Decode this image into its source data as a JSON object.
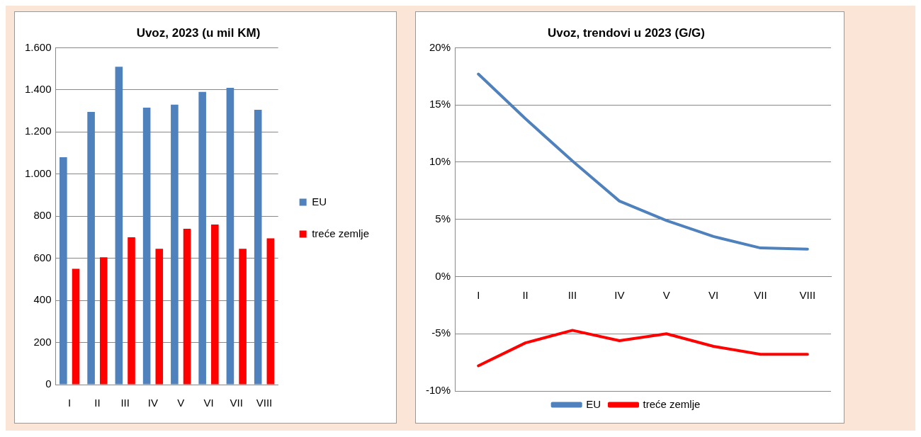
{
  "chart_data": [
    {
      "type": "bar",
      "title": "Uvoz, 2023 (u mil KM)",
      "categories": [
        "I",
        "II",
        "III",
        "IV",
        "V",
        "VI",
        "VII",
        "VIII"
      ],
      "series": [
        {
          "name": "EU",
          "color": "#4f81bd",
          "values": [
            1080,
            1295,
            1510,
            1315,
            1330,
            1390,
            1410,
            1305
          ]
        },
        {
          "name": "treće zemlje",
          "color": "#ff0000",
          "values": [
            550,
            605,
            700,
            645,
            740,
            760,
            645,
            695
          ]
        }
      ],
      "ylim": [
        0,
        1600
      ],
      "yticks": [
        {
          "value": 0,
          "label": "0"
        },
        {
          "value": 200,
          "label": "200"
        },
        {
          "value": 400,
          "label": "400"
        },
        {
          "value": 600,
          "label": "600"
        },
        {
          "value": 800,
          "label": "800"
        },
        {
          "value": 1000,
          "label": "1.000"
        },
        {
          "value": 1200,
          "label": "1.200"
        },
        {
          "value": 1400,
          "label": "1.400"
        },
        {
          "value": 1600,
          "label": "1.600"
        }
      ],
      "grid": "y",
      "legend": "right"
    },
    {
      "type": "line",
      "title": "Uvoz, trendovi u 2023 (G/G)",
      "categories": [
        "I",
        "II",
        "III",
        "IV",
        "V",
        "VI",
        "VII",
        "VIII"
      ],
      "series": [
        {
          "name": "EU",
          "color": "#4f81bd",
          "values": [
            17.7,
            13.8,
            10.1,
            6.6,
            4.9,
            3.5,
            2.5,
            2.4
          ]
        },
        {
          "name": "treće zemlje",
          "color": "#ff0000",
          "values": [
            -7.8,
            -5.8,
            -4.7,
            -5.6,
            -5.0,
            -6.1,
            -6.8,
            -6.8
          ]
        }
      ],
      "ylim": [
        -10,
        20
      ],
      "yticks": [
        {
          "value": -10,
          "label": "-10%"
        },
        {
          "value": -5,
          "label": "-5%"
        },
        {
          "value": 0,
          "label": "0%"
        },
        {
          "value": 5,
          "label": "5%"
        },
        {
          "value": 10,
          "label": "10%"
        },
        {
          "value": 15,
          "label": "15%"
        },
        {
          "value": 20,
          "label": "20%"
        }
      ],
      "grid": "y",
      "legend": "bottom",
      "marker": "none",
      "line_style": "solid"
    }
  ]
}
